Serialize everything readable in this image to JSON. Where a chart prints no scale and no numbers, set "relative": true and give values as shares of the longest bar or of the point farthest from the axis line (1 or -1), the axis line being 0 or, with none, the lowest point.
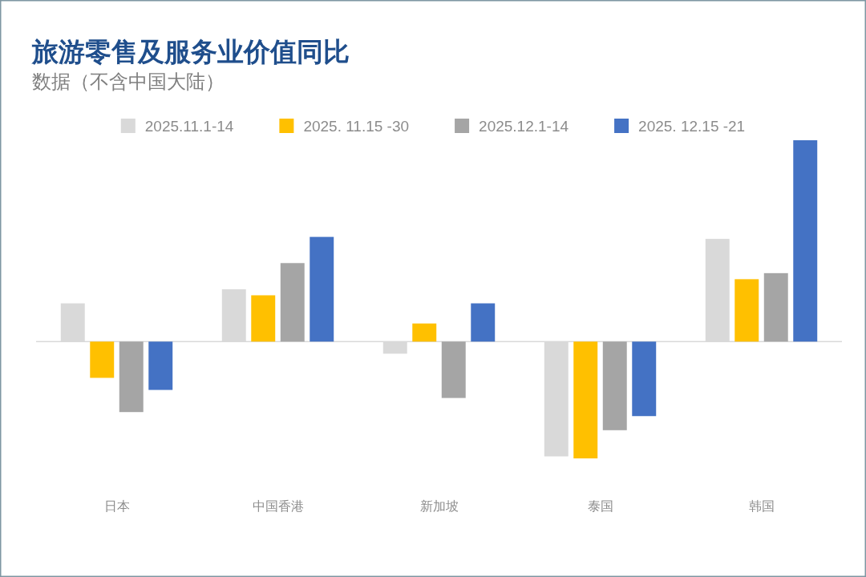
{
  "chart_data": {
    "type": "bar",
    "title": "旅游零售及服务业价值同比",
    "subtitle": "数据（不含中国大陆）",
    "relative": true,
    "legend": "top",
    "categories": [
      "日本",
      "中国香港",
      "新加坡",
      "泰国",
      "韩国"
    ],
    "series": [
      {
        "name": "2025.11.1-14",
        "color": "#d9d9d9",
        "values": [
          0.19,
          0.26,
          -0.06,
          -0.57,
          0.51
        ]
      },
      {
        "name": "2025. 11.15 -30",
        "color": "#ffc000",
        "values": [
          -0.18,
          0.23,
          0.09,
          -0.58,
          0.31
        ]
      },
      {
        "name": "2025.12.1-14",
        "color": "#a5a5a5",
        "values": [
          -0.35,
          0.39,
          -0.28,
          -0.44,
          0.34
        ]
      },
      {
        "name": "2025. 12.15 -21",
        "color": "#4472c4",
        "values": [
          -0.24,
          0.52,
          0.19,
          -0.37,
          1
        ]
      }
    ]
  }
}
